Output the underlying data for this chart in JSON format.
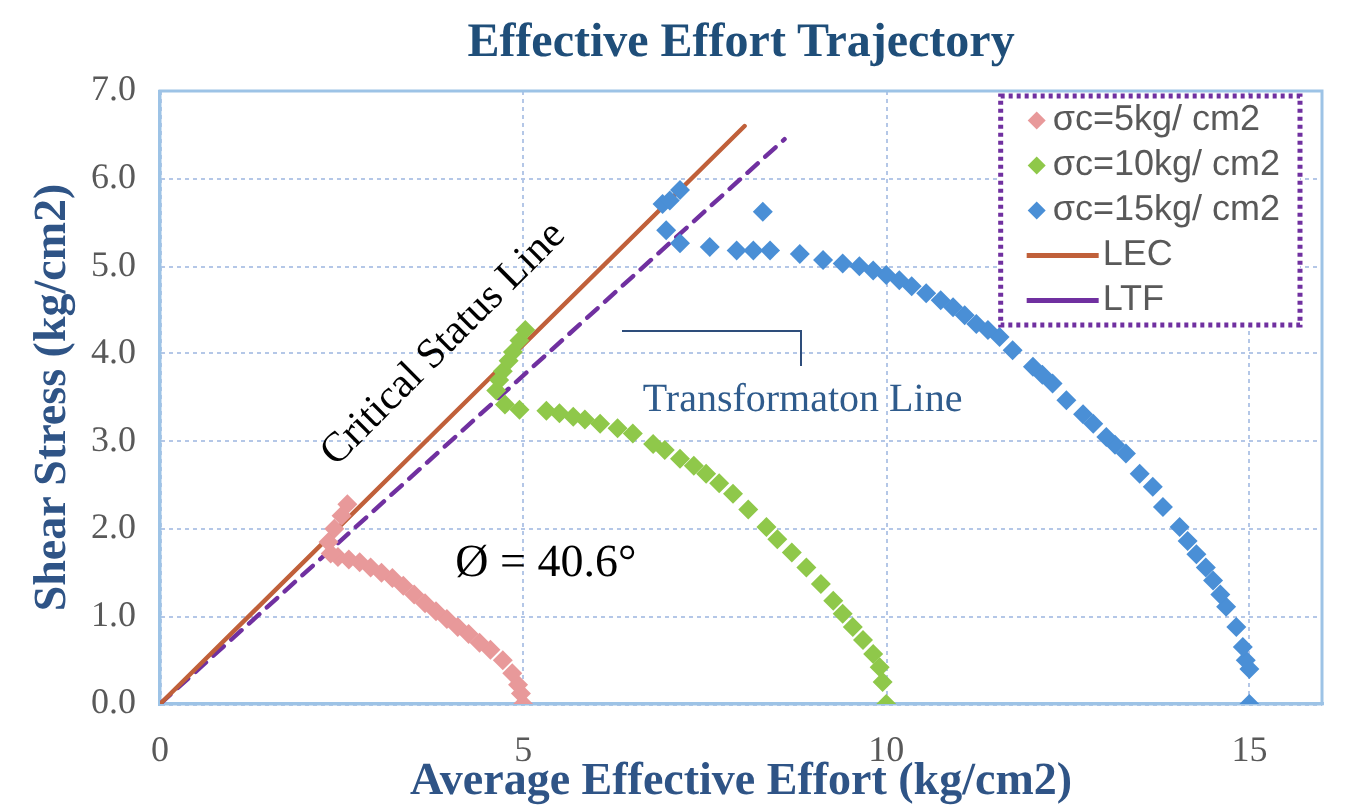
{
  "chart_data": {
    "type": "scatter",
    "title": "Effective Effort Trajectory",
    "xlabel": "Average Effective Effort (kg/cm2)",
    "ylabel": "Shear Stress (kg/cm2)",
    "xlim": [
      0,
      16
    ],
    "xticks": [
      0,
      5,
      10,
      15
    ],
    "ylim": [
      0,
      7
    ],
    "yticks": [
      {
        "value": 0,
        "label": "0.0"
      },
      {
        "value": 1,
        "label": "1.0"
      },
      {
        "value": 2,
        "label": "2.0"
      },
      {
        "value": 3,
        "label": "3.0"
      },
      {
        "value": 4,
        "label": "4.0"
      },
      {
        "value": 5,
        "label": "5.0"
      },
      {
        "value": 6,
        "label": "6.0"
      },
      {
        "value": 7,
        "label": "7.0"
      }
    ],
    "grid": true,
    "legend": "top right",
    "marker": "diamond",
    "series": [
      {
        "name": "σc=5kg/ cm2",
        "color": "#e8999a",
        "x": [
          5.0,
          4.97,
          4.93,
          4.85,
          4.72,
          4.55,
          4.4,
          4.25,
          4.1,
          3.95,
          3.8,
          3.65,
          3.5,
          3.35,
          3.2,
          3.05,
          2.9,
          2.75,
          2.6,
          2.45,
          2.35,
          2.32,
          2.4,
          2.5,
          2.58
        ],
        "values": [
          0.0,
          0.12,
          0.22,
          0.35,
          0.5,
          0.62,
          0.7,
          0.8,
          0.88,
          0.97,
          1.06,
          1.15,
          1.25,
          1.35,
          1.44,
          1.5,
          1.56,
          1.62,
          1.65,
          1.68,
          1.72,
          1.85,
          2.0,
          2.15,
          2.28
        ]
      },
      {
        "name": "σc=10kg/ cm2",
        "color": "#8fc84a",
        "x": [
          10.0,
          9.95,
          9.91,
          9.82,
          9.68,
          9.54,
          9.4,
          9.27,
          9.1,
          8.9,
          8.7,
          8.5,
          8.35,
          8.1,
          7.89,
          7.7,
          7.52,
          7.35,
          7.16,
          6.95,
          6.79,
          6.51,
          6.3,
          6.06,
          5.85,
          5.69,
          5.5,
          5.32,
          4.95,
          4.75,
          4.63,
          4.67,
          4.72,
          4.8,
          4.86,
          4.95,
          5.03
        ],
        "values": [
          0.0,
          0.25,
          0.42,
          0.57,
          0.73,
          0.88,
          1.03,
          1.18,
          1.37,
          1.56,
          1.73,
          1.88,
          2.02,
          2.22,
          2.4,
          2.52,
          2.63,
          2.72,
          2.8,
          2.9,
          2.97,
          3.09,
          3.15,
          3.2,
          3.25,
          3.28,
          3.32,
          3.35,
          3.36,
          3.42,
          3.58,
          3.7,
          3.8,
          3.92,
          4.02,
          4.15,
          4.27
        ]
      },
      {
        "name": "σc=15kg/ cm2",
        "color": "#4a8fd6",
        "x": [
          15.0,
          15.0,
          14.95,
          14.91,
          14.82,
          14.68,
          14.6,
          14.5,
          14.4,
          14.27,
          14.15,
          14.04,
          13.81,
          13.67,
          13.49,
          13.3,
          13.15,
          13.03,
          12.85,
          12.71,
          12.48,
          12.29,
          12.15,
          12.02,
          11.74,
          11.56,
          11.4,
          11.24,
          11.08,
          10.92,
          10.75,
          10.55,
          10.35,
          10.18,
          10.0,
          9.82,
          9.63,
          9.4,
          9.13,
          8.81,
          8.4,
          8.17,
          7.94,
          7.57,
          7.16,
          6.97,
          8.3,
          6.92,
          7.02,
          7.16
        ],
        "values": [
          0.0,
          0.4,
          0.5,
          0.65,
          0.88,
          1.11,
          1.25,
          1.41,
          1.56,
          1.71,
          1.86,
          2.02,
          2.25,
          2.48,
          2.63,
          2.86,
          2.96,
          3.05,
          3.2,
          3.31,
          3.47,
          3.66,
          3.76,
          3.85,
          4.04,
          4.19,
          4.27,
          4.34,
          4.44,
          4.53,
          4.61,
          4.69,
          4.77,
          4.84,
          4.9,
          4.95,
          5.0,
          5.03,
          5.07,
          5.14,
          5.18,
          5.18,
          5.18,
          5.22,
          5.26,
          5.41,
          5.62,
          5.71,
          5.75,
          5.87
        ]
      },
      {
        "name": "LEC",
        "type": "line",
        "color": "#c0603a",
        "marker": "none",
        "x": [
          0,
          8.05
        ],
        "values": [
          0,
          6.6
        ]
      },
      {
        "name": "LTF",
        "type": "line",
        "color": "#7030a0",
        "marker": "none",
        "line_style": "dashed",
        "x": [
          0,
          8.6
        ],
        "values": [
          0,
          6.45
        ]
      }
    ],
    "annotations": [
      "Critical Status Line",
      "Ø = 40.6°",
      "Transformaton Line"
    ]
  }
}
